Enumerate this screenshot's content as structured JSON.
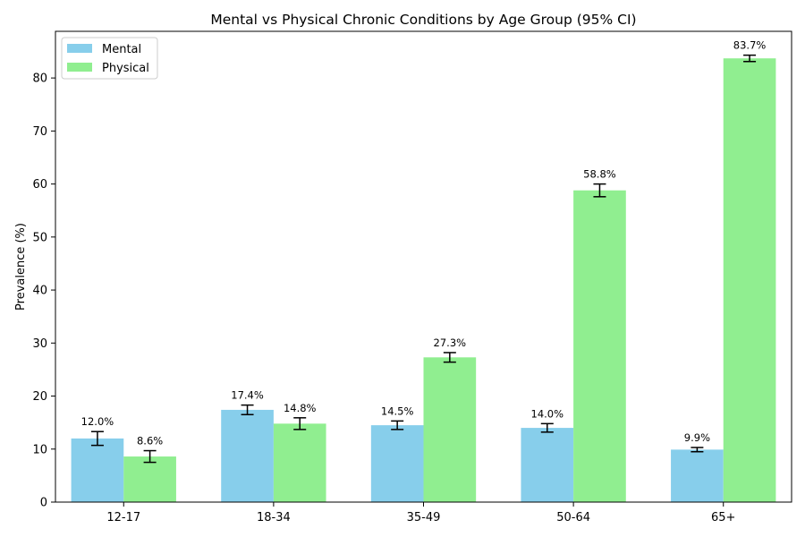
{
  "chart_data": {
    "type": "bar",
    "title": "Mental vs Physical Chronic Conditions by Age Group (95% CI)",
    "xlabel": "",
    "ylabel": "Prevalence (%)",
    "categories": [
      "12-17",
      "18-34",
      "35-49",
      "50-64",
      "65+"
    ],
    "ylim": [
      0,
      88.8
    ],
    "yticks": [
      0,
      10,
      20,
      30,
      40,
      50,
      60,
      70,
      80
    ],
    "legend_position": "top-left",
    "grid": false,
    "series": [
      {
        "name": "Mental",
        "color": "#87ceeb",
        "values": [
          12.0,
          17.4,
          14.5,
          14.0,
          9.9
        ],
        "ci_half_width": [
          1.3,
          0.9,
          0.8,
          0.8,
          0.4
        ],
        "labels": [
          "12.0%",
          "17.4%",
          "14.5%",
          "14.0%",
          "9.9%"
        ]
      },
      {
        "name": "Physical",
        "color": "#90ee90",
        "values": [
          8.6,
          14.8,
          27.3,
          58.8,
          83.7
        ],
        "ci_half_width": [
          1.1,
          1.1,
          0.9,
          1.2,
          0.6
        ],
        "labels": [
          "8.6%",
          "14.8%",
          "27.3%",
          "58.8%",
          "83.7%"
        ]
      }
    ]
  }
}
